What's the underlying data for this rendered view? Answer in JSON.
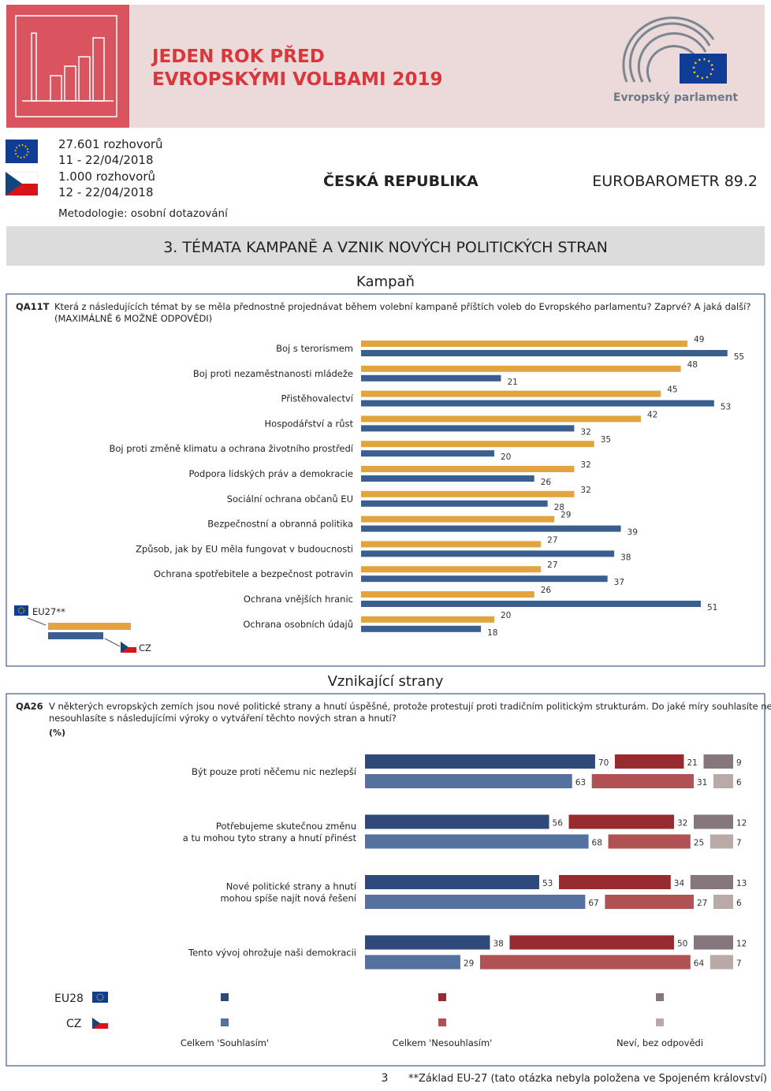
{
  "header": {
    "title": [
      "JEDEN ROK PŘED",
      "EVROPSKÝMI VOLBAMI 2019"
    ],
    "logo_text": "Evropský parlament"
  },
  "info": {
    "eu": [
      "27.601 rozhovorů",
      "11 - 22/04/2018"
    ],
    "cz": [
      "1.000 rozhovorů",
      "12 - 22/04/2018"
    ],
    "methodology": "Metodologie: osobní dotazování",
    "country": "ČESKÁ REPUBLIKA",
    "survey": "EUROBAROMETR 89.2"
  },
  "section_title": "3. TÉMATA KAMPANĚ A VZNIK NOVÝCH POLITICKÝCH STRAN",
  "campaign": {
    "heading": "Kampaň",
    "code": "QA11T",
    "question": [
      "Která z následujících témat by se měla přednostně projednávat během volební kampaně příštích voleb do Evropského parlamentu? Zaprvé? A jaká další?",
      "(MAXIMÁLNĚ 6 MOŽNÉ ODPOVĚDI)"
    ],
    "legend": {
      "eu": "EU27**",
      "cz": "CZ"
    },
    "colors": {
      "eu": "#e2a43f",
      "cz": "#3a5e8e"
    },
    "items": [
      {
        "label": "Boj s terorismem",
        "eu": 49,
        "cz": 55
      },
      {
        "label": "Boj proti nezaměstnanosti mládeže",
        "eu": 48,
        "cz": 21
      },
      {
        "label": "Přistěhovalectví",
        "eu": 45,
        "cz": 53
      },
      {
        "label": "Hospodářství a růst",
        "eu": 42,
        "cz": 32
      },
      {
        "label": "Boj proti změně klimatu a ochrana životního prostředí",
        "eu": 35,
        "cz": 20
      },
      {
        "label": "Podpora lidských práv a demokracie",
        "eu": 32,
        "cz": 26
      },
      {
        "label": "Sociální ochrana občanů EU",
        "eu": 32,
        "cz": 28
      },
      {
        "label": "Bezpečnostní a obranná politika",
        "eu": 29,
        "cz": 39
      },
      {
        "label": "Způsob, jak by EU měla fungovat v budoucnosti",
        "eu": 27,
        "cz": 38
      },
      {
        "label": "Ochrana spotřebitele a bezpečnost potravin",
        "eu": 27,
        "cz": 37
      },
      {
        "label": "Ochrana vnějších hranic",
        "eu": 26,
        "cz": 51
      },
      {
        "label": "Ochrana osobních údajů",
        "eu": 20,
        "cz": 18
      }
    ]
  },
  "new_parties": {
    "heading": "Vznikající strany",
    "code": "QA26",
    "question": [
      "V některých evropských zemích jsou nové politické strany a hnutí úspěšné, protože protestují proti tradičním politickým strukturám. Do jaké míry souhlasíte nebo",
      "nesouhlasíte s následujícími výroky o vytváření těchto nových stran a hnutí?"
    ],
    "unit": "(%)",
    "legend": {
      "eu": "EU28",
      "cz": "CZ",
      "answers": [
        "Celkem 'Souhlasím'",
        "Celkem 'Nesouhlasím'",
        "Neví, bez odpovědi"
      ]
    },
    "colors": {
      "eu": [
        "#2f4a7a",
        "#982b2f",
        "#85777c"
      ],
      "cz": [
        "#5571a0",
        "#b05153",
        "#b9aaa8"
      ]
    },
    "items": [
      {
        "label": [
          "Být pouze proti něčemu nic nezlepší"
        ],
        "eu": [
          70,
          21,
          9
        ],
        "cz": [
          63,
          31,
          6
        ]
      },
      {
        "label": [
          "Potřebujeme skutečnou změnu",
          "a tu mohou tyto strany a hnutí přinést"
        ],
        "eu": [
          56,
          32,
          12
        ],
        "cz": [
          68,
          25,
          7
        ]
      },
      {
        "label": [
          "Nové politické strany a hnutí",
          "mohou spíše najít nová řešení"
        ],
        "eu": [
          53,
          34,
          13
        ],
        "cz": [
          67,
          27,
          6
        ]
      },
      {
        "label": [
          "Tento vývoj ohrožuje naši demokracii"
        ],
        "eu": [
          38,
          50,
          12
        ],
        "cz": [
          29,
          64,
          7
        ]
      }
    ]
  },
  "footer": {
    "page": "3",
    "note": "**Základ EU-27 (tato otázka nebyla položena ve Spojeném království)"
  }
}
